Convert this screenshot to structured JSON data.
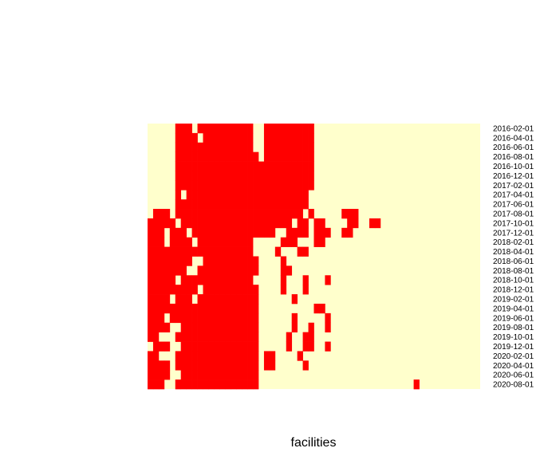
{
  "chart_data": {
    "type": "heatmap",
    "xlabel": "facilities",
    "ylabel": "",
    "legend": "none",
    "grid": false,
    "colors": {
      "present": "#ff0000",
      "absent": "#ffffcc"
    },
    "n_columns": 60,
    "row_labels": [
      "2016-02-01",
      "2016-04-01",
      "2016-06-01",
      "2016-08-01",
      "2016-10-01",
      "2016-12-01",
      "2017-02-01",
      "2017-04-01",
      "2017-06-01",
      "2017-08-01",
      "2017-10-01",
      "2017-12-01",
      "2018-02-01",
      "2018-04-01",
      "2018-06-01",
      "2018-08-01",
      "2018-10-01",
      "2018-12-01",
      "2019-02-01",
      "2019-04-01",
      "2019-06-01",
      "2019-08-01",
      "2019-10-01",
      "2019-12-01",
      "2020-02-01",
      "2020-04-01",
      "2020-06-01",
      "2020-08-01"
    ],
    "rows": [
      "000001110111111111100111111111000000000000000000000000000000",
      "000001111011111111100111111111000000000000000000000000000000",
      "000001111111111111100111111111000000000000000000000000000000",
      "000001111111111111110111111111000000000000000000000000000000",
      "000001111111111111111111111111000000000000000000000000000000",
      "000001111111111111111111111111000000000000000000000000000000",
      "000001111111111111111111111111000000000000000000000000000000",
      "000001011111111111111111111110000000000000000000000000000000",
      "000001111111111111111111111110000000000000000000000000000000",
      "011101111111111111111111111101000001110000000000000000000000",
      "111110111111111111111111110110110000110011000000000000000000",
      "111011101111111111111110011110111001100000000000000000000000",
      "111011110111111111100000111000110000000000000000000000000000",
      "111111111111111111100001000110000000000000000000000000000000",
      "111111110011111111110000100000000000000000000000000000000000",
      "111111100111111111110000110000000000000000000000000000000000",
      "111110111111111111100000100010001000000000000000000000000000",
      "111111111011111111110000100010000000000000000000000000000000",
      "111101110111111111110000001000000000000000000000000000000000",
      "111111111111111111110000000000110000000000000000000000000000",
      "111011111111111111110000001000001000000000000000000000000000",
      "111100111111111111110000001001001000000000000000000000000000",
      "110001111111111111110000010011000000000000000000000000000000",
      "011100111111111111110000010011001000000000000000000000000000",
      "110001111111111111110110000100000000000000000000000000000000",
      "111101111111111111110110000010000000000000000000000000000000",
      "111100111111111111110000000000000000000000000000000000000000",
      "111001111111111111110000000000000000000000000000100000000000"
    ]
  }
}
